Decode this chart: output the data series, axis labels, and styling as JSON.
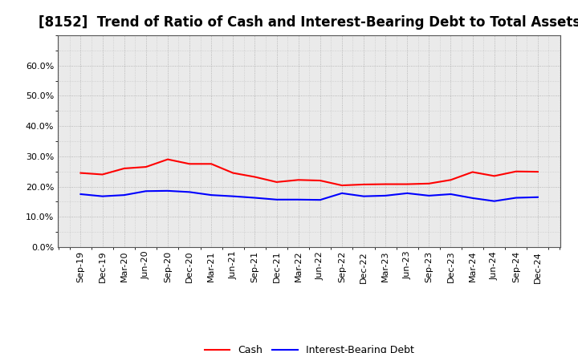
{
  "title": "[8152]  Trend of Ratio of Cash and Interest-Bearing Debt to Total Assets",
  "x_labels": [
    "Sep-19",
    "Dec-19",
    "Mar-20",
    "Jun-20",
    "Sep-20",
    "Dec-20",
    "Mar-21",
    "Jun-21",
    "Sep-21",
    "Dec-21",
    "Mar-22",
    "Jun-22",
    "Sep-22",
    "Dec-22",
    "Mar-23",
    "Jun-23",
    "Sep-23",
    "Dec-23",
    "Mar-24",
    "Jun-24",
    "Sep-24",
    "Dec-24"
  ],
  "cash": [
    0.245,
    0.24,
    0.26,
    0.265,
    0.29,
    0.275,
    0.275,
    0.245,
    0.232,
    0.215,
    0.222,
    0.22,
    0.204,
    0.207,
    0.208,
    0.208,
    0.21,
    0.222,
    0.248,
    0.235,
    0.25,
    0.249
  ],
  "ibd": [
    0.175,
    0.168,
    0.172,
    0.185,
    0.186,
    0.182,
    0.172,
    0.168,
    0.163,
    0.157,
    0.157,
    0.156,
    0.178,
    0.168,
    0.17,
    0.178,
    0.17,
    0.175,
    0.162,
    0.152,
    0.163,
    0.165
  ],
  "cash_color": "#FF0000",
  "ibd_color": "#0000FF",
  "ylim": [
    0.0,
    0.7
  ],
  "yticks": [
    0.0,
    0.1,
    0.2,
    0.3,
    0.4,
    0.5,
    0.6
  ],
  "background_color": "#FFFFFF",
  "plot_bg_color": "#EAEAEA",
  "grid_color": "#999999",
  "title_fontsize": 12,
  "tick_fontsize": 8,
  "legend_fontsize": 9
}
